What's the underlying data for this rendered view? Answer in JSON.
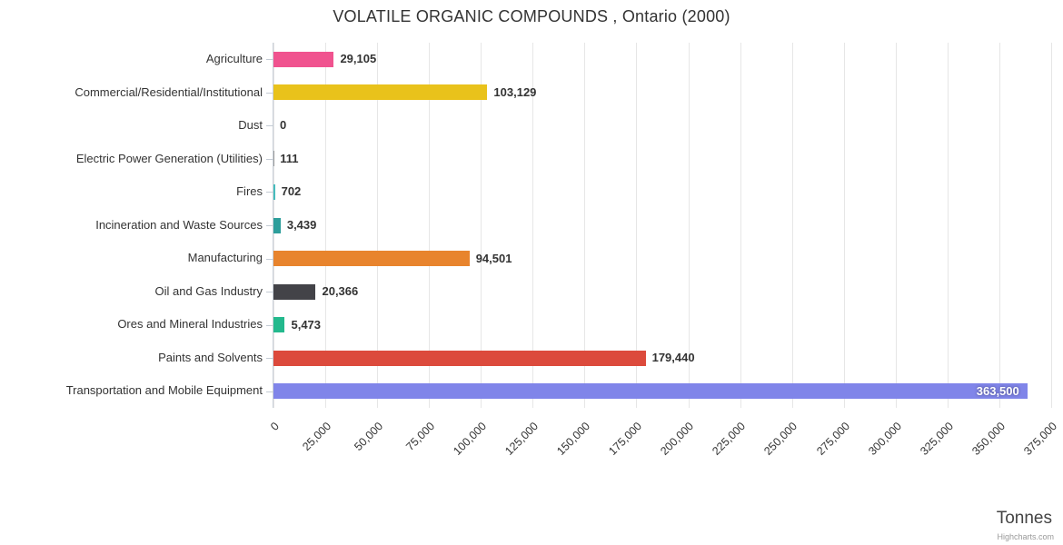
{
  "credits": "Highcharts.com",
  "chart_data": {
    "type": "bar",
    "orientation": "horizontal",
    "title": "VOLATILE ORGANIC COMPOUNDS , Ontario (2000)",
    "xlabel": "Tonnes",
    "xlim": [
      0,
      375000
    ],
    "tick_interval": 25000,
    "grid": true,
    "legend": false,
    "categories": [
      "Agriculture",
      "Commercial/Residential/Institutional",
      "Dust",
      "Electric Power Generation (Utilities)",
      "Fires",
      "Incineration and Waste Sources",
      "Manufacturing",
      "Oil and Gas Industry",
      "Ores and Mineral Industries",
      "Paints and Solvents",
      "Transportation and Mobile Equipment"
    ],
    "values": [
      29105,
      103129,
      0,
      111,
      702,
      3439,
      94501,
      20366,
      5473,
      179440,
      363500
    ],
    "value_labels": [
      "29,105",
      "103,129",
      "0",
      "111",
      "702",
      "3,439",
      "94,501",
      "20,366",
      "5,473",
      "179,440",
      "363,500"
    ],
    "bar_colors": [
      "#f0538f",
      "#e9c21b",
      "#b0b0b0",
      "#9a9a9a",
      "#46bdbd",
      "#2d9e9b",
      "#e8842d",
      "#434348",
      "#23b98d",
      "#dc4a3c",
      "#8085e9"
    ],
    "tick_labels": [
      "0",
      "25,000",
      "50,000",
      "75,000",
      "100,000",
      "125,000",
      "150,000",
      "175,000",
      "200,000",
      "225,000",
      "250,000",
      "275,000",
      "300,000",
      "325,000",
      "350,000",
      "375,000"
    ]
  }
}
